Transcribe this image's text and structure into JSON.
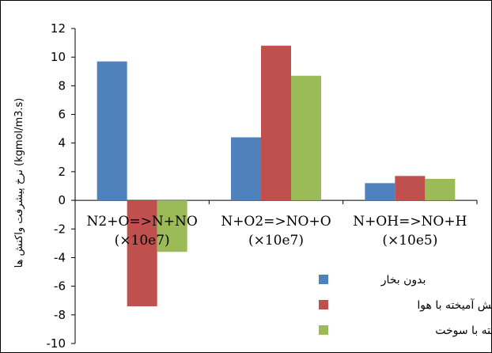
{
  "chart_data": {
    "type": "bar",
    "ylabel": "نرخ پیشرفت واکنش ها (kgmol/m3.s)",
    "ylim": [
      -10,
      12
    ],
    "yticks": [
      12,
      10,
      8,
      6,
      4,
      2,
      0,
      -2,
      -4,
      -6,
      -8,
      -10
    ],
    "categories": [
      {
        "line1": "N2+O=>N+NO",
        "line2": "(×10e7)"
      },
      {
        "line1": "N+O2=>NO+O",
        "line2": "(×10e7)"
      },
      {
        "line1": "N+OH=>NO+H",
        "line2": "(×10e5)"
      }
    ],
    "series": [
      {
        "name": "بدون بخار",
        "color": "#4F81BD",
        "values": [
          9.7,
          4.4,
          1.2
        ]
      },
      {
        "name": "پیش آمیخته با هوا",
        "color": "#C0504D",
        "values": [
          -7.4,
          10.8,
          1.7
        ]
      },
      {
        "name": "پیش آمیخته با سوخت",
        "color": "#9BBB59",
        "values": [
          -3.6,
          8.7,
          1.5
        ]
      }
    ],
    "legend_position": "bottom-right"
  }
}
